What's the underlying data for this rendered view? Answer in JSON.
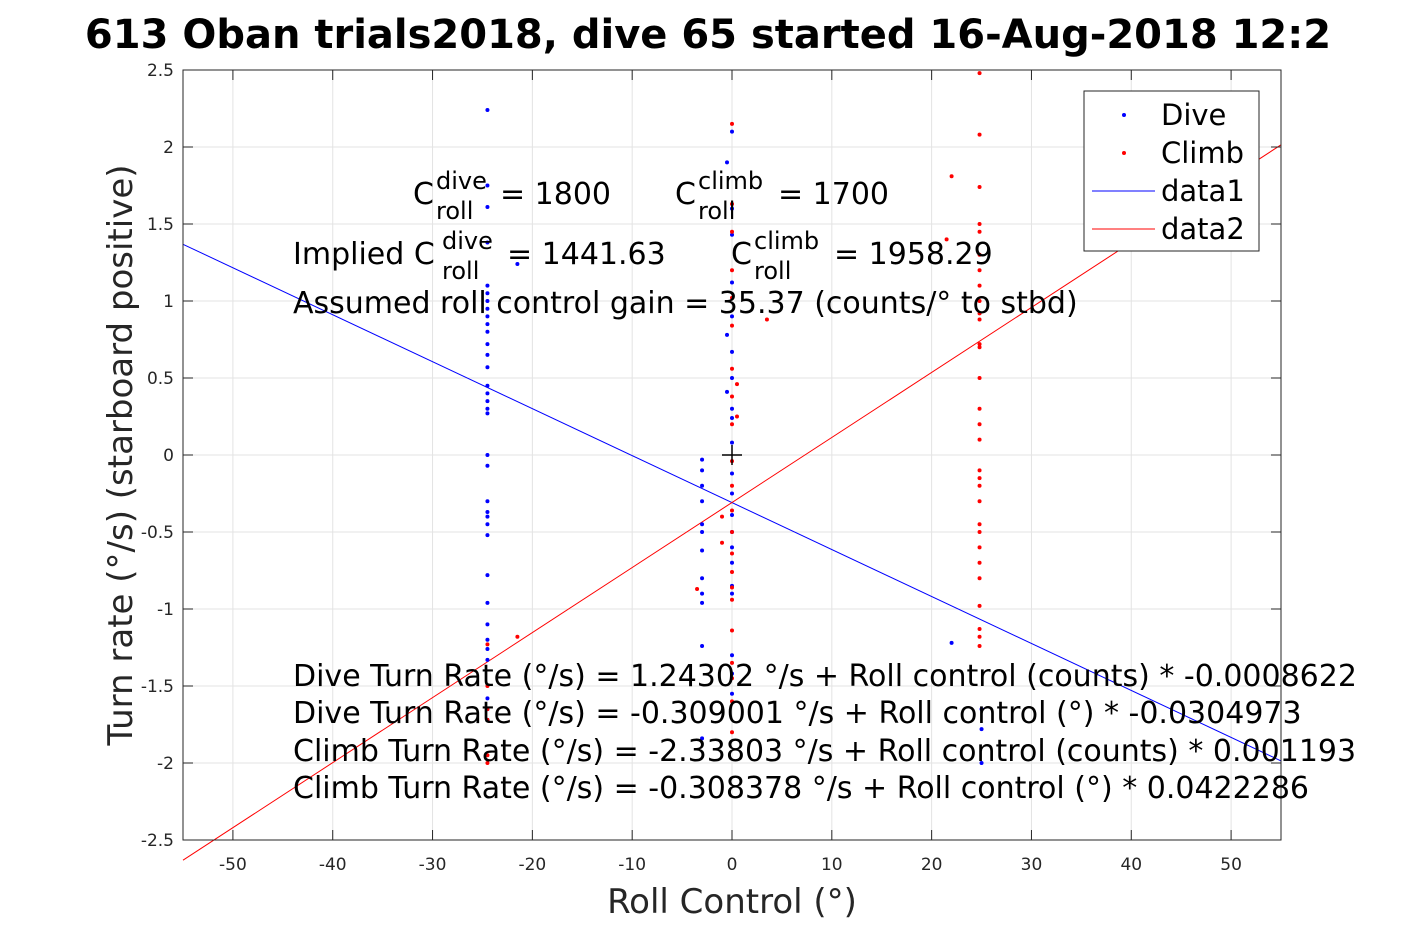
{
  "title": "613 Oban trials2018, dive 65 started 16-Aug-2018 12:2",
  "chart_data": {
    "type": "scatter",
    "xlabel": "Roll Control (°)",
    "ylabel": "Turn rate (°/s) (starboard positive)",
    "xlim": [
      -55,
      55
    ],
    "ylim": [
      -2.5,
      2.5
    ],
    "xticks": [
      -50,
      -40,
      -30,
      -20,
      -10,
      0,
      10,
      20,
      30,
      40,
      50
    ],
    "yticks": [
      -2.5,
      -2,
      -1.5,
      -1,
      -0.5,
      0,
      0.5,
      1,
      1.5,
      2,
      2.5
    ],
    "xtick_labels": [
      "-50",
      "-40",
      "-30",
      "-20",
      "-10",
      "0",
      "10",
      "20",
      "30",
      "40",
      "50"
    ],
    "ytick_labels": [
      "-2.5",
      "-2",
      "-1.5",
      "-1",
      "-0.5",
      "0",
      "0.5",
      "1",
      "1.5",
      "2",
      "2.5"
    ],
    "grid": true,
    "legend_position": "top-right",
    "legend": [
      {
        "label": "Dive",
        "style": "dot",
        "color": "#0000ff"
      },
      {
        "label": "Climb",
        "style": "dot",
        "color": "#ff0000"
      },
      {
        "label": "data1",
        "style": "line",
        "color": "#0000ff"
      },
      {
        "label": "data2",
        "style": "line",
        "color": "#ff0000"
      }
    ],
    "series": [
      {
        "name": "Dive",
        "kind": "points",
        "color": "#0000ff",
        "points": [
          [
            -24.5,
            2.24
          ],
          [
            -24.5,
            1.75
          ],
          [
            -24.5,
            1.61
          ],
          [
            -24.5,
            1.38
          ],
          [
            -24.5,
            1.1
          ],
          [
            -24.5,
            1.05
          ],
          [
            -24.5,
            1.0
          ],
          [
            -24.5,
            0.95
          ],
          [
            -24.5,
            0.9
          ],
          [
            -24.5,
            0.85
          ],
          [
            -24.5,
            0.8
          ],
          [
            -24.5,
            0.72
          ],
          [
            -24.5,
            0.65
          ],
          [
            -24.5,
            0.57
          ],
          [
            -24.5,
            0.45
          ],
          [
            -24.5,
            0.4
          ],
          [
            -24.5,
            0.35
          ],
          [
            -24.5,
            0.3
          ],
          [
            -24.5,
            0.27
          ],
          [
            -24.5,
            0.0
          ],
          [
            -24.5,
            -0.07
          ],
          [
            -24.5,
            -0.3
          ],
          [
            -24.5,
            -0.37
          ],
          [
            -24.5,
            -0.4
          ],
          [
            -24.5,
            -0.45
          ],
          [
            -24.5,
            -0.52
          ],
          [
            -24.5,
            -0.78
          ],
          [
            -24.5,
            -0.96
          ],
          [
            -24.5,
            -1.1
          ],
          [
            -24.5,
            -1.2
          ],
          [
            -24.5,
            -1.26
          ],
          [
            -24.5,
            -1.33
          ],
          [
            -24.5,
            -1.58
          ],
          [
            -24.5,
            -1.65
          ],
          [
            -24.5,
            -1.72
          ],
          [
            -21.5,
            1.24
          ],
          [
            -3,
            -0.03
          ],
          [
            -3,
            -0.1
          ],
          [
            -3,
            -0.2
          ],
          [
            -3,
            -0.3
          ],
          [
            -3,
            -0.45
          ],
          [
            -3,
            -0.5
          ],
          [
            -3,
            -0.62
          ],
          [
            -3,
            -0.8
          ],
          [
            -3,
            -0.9
          ],
          [
            -3,
            -0.96
          ],
          [
            -3,
            -1.24
          ],
          [
            -3,
            -1.84
          ],
          [
            -0.5,
            1.9
          ],
          [
            -0.5,
            0.78
          ],
          [
            -0.5,
            0.41
          ],
          [
            0,
            2.1
          ],
          [
            0,
            1.6
          ],
          [
            0,
            1.43
          ],
          [
            0,
            1.12
          ],
          [
            0,
            0.9
          ],
          [
            0,
            0.67
          ],
          [
            0,
            0.5
          ],
          [
            0,
            0.3
          ],
          [
            0,
            0.24
          ],
          [
            0,
            0.08
          ],
          [
            0,
            -0.12
          ],
          [
            0,
            -0.25
          ],
          [
            0,
            -0.39
          ],
          [
            0,
            -0.5
          ],
          [
            0,
            -0.6
          ],
          [
            0,
            -0.7
          ],
          [
            0,
            -0.85
          ],
          [
            0,
            -0.9
          ],
          [
            0,
            -1.3
          ],
          [
            0,
            -1.42
          ],
          [
            0,
            -1.55
          ],
          [
            22,
            -1.22
          ],
          [
            25,
            -1.65
          ],
          [
            25,
            -1.78
          ],
          [
            25,
            -2.0
          ]
        ]
      },
      {
        "name": "Climb",
        "kind": "points",
        "color": "#ff0000",
        "points": [
          [
            24.8,
            2.48
          ],
          [
            24.8,
            2.08
          ],
          [
            24.8,
            1.74
          ],
          [
            24.8,
            1.5
          ],
          [
            24.8,
            1.45
          ],
          [
            24.8,
            1.3
          ],
          [
            24.8,
            1.2
          ],
          [
            24.8,
            1.1
          ],
          [
            24.8,
            1.0
          ],
          [
            24.8,
            0.92
          ],
          [
            24.8,
            0.88
          ],
          [
            24.8,
            0.72
          ],
          [
            24.8,
            0.7
          ],
          [
            24.8,
            0.5
          ],
          [
            24.8,
            0.3
          ],
          [
            24.8,
            0.2
          ],
          [
            24.8,
            0.1
          ],
          [
            24.8,
            -0.1
          ],
          [
            24.8,
            -0.15
          ],
          [
            24.8,
            -0.2
          ],
          [
            24.8,
            -0.3
          ],
          [
            24.8,
            -0.45
          ],
          [
            24.8,
            -0.5
          ],
          [
            24.8,
            -0.6
          ],
          [
            24.8,
            -0.7
          ],
          [
            24.8,
            -0.8
          ],
          [
            24.8,
            -0.98
          ],
          [
            24.8,
            -1.13
          ],
          [
            24.8,
            -1.18
          ],
          [
            24.8,
            -1.24
          ],
          [
            22,
            1.81
          ],
          [
            21.5,
            1.4
          ],
          [
            3.5,
            0.88
          ],
          [
            0,
            2.15
          ],
          [
            0,
            1.63
          ],
          [
            0,
            1.45
          ],
          [
            0,
            1.2
          ],
          [
            0,
            1.02
          ],
          [
            0,
            0.84
          ],
          [
            0,
            0.56
          ],
          [
            0,
            0.38
          ],
          [
            0,
            0.2
          ],
          [
            0,
            -0.04
          ],
          [
            0,
            -0.2
          ],
          [
            0,
            -0.36
          ],
          [
            0,
            -0.5
          ],
          [
            0,
            -0.64
          ],
          [
            0,
            -0.76
          ],
          [
            0,
            -0.86
          ],
          [
            0,
            -0.94
          ],
          [
            0,
            -1.14
          ],
          [
            0,
            -1.35
          ],
          [
            0,
            -1.45
          ],
          [
            0,
            -1.6
          ],
          [
            0,
            -1.8
          ],
          [
            0.5,
            0.46
          ],
          [
            0.5,
            0.25
          ],
          [
            -3.5,
            -0.87
          ],
          [
            -1,
            -0.57
          ],
          [
            -1,
            -0.4
          ],
          [
            -21.5,
            -1.18
          ],
          [
            -24.5,
            -1.23
          ],
          [
            -24.5,
            -1.5
          ],
          [
            -24.5,
            -1.65
          ],
          [
            -24.5,
            -1.72
          ],
          [
            -24.5,
            -1.95
          ],
          [
            -24.5,
            -2.0
          ]
        ]
      },
      {
        "name": "data1",
        "kind": "line",
        "color": "#0000ff",
        "x": [
          -55,
          55
        ],
        "y": [
          1.3683,
          -1.9863
        ]
      },
      {
        "name": "data2",
        "kind": "line",
        "color": "#ff0000",
        "x": [
          -55,
          55
        ],
        "y": [
          -2.631,
          2.0141
        ]
      }
    ],
    "origin_marker": [
      0,
      0
    ]
  },
  "annotations": {
    "c_roll_dive": {
      "base": "C",
      "sup": "dive",
      "sub": "roll",
      "value": "= 1800"
    },
    "c_roll_climb": {
      "base": "C",
      "sup": "climb",
      "sub": "roll",
      "value": "= 1700"
    },
    "implied_dive": {
      "prefix": "Implied C",
      "sup": "dive",
      "sub": "roll",
      "value": "= 1441.63"
    },
    "implied_climb": {
      "base": "C",
      "sup": "climb",
      "sub": "roll",
      "value": "= 1958.29"
    },
    "gain": "Assumed roll control gain = 35.37 (counts/° to stbd)",
    "fits": [
      "Dive Turn Rate (°/s) = 1.24302 °/s + Roll control (counts) * -0.0008622",
      "Dive Turn Rate (°/s) = -0.309001 °/s + Roll control (°) * -0.0304973",
      "Climb Turn Rate (°/s) = -2.33803 °/s + Roll control (counts) * 0.001193",
      "Climb Turn Rate (°/s) = -0.308378 °/s + Roll control (°) * 0.0422286"
    ]
  }
}
